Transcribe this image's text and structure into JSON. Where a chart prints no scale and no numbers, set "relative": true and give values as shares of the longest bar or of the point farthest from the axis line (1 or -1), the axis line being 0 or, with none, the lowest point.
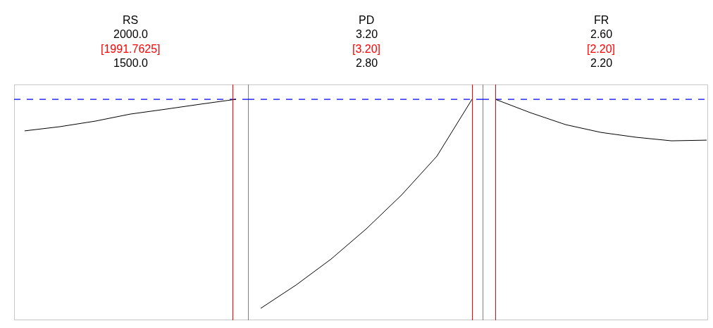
{
  "chart_data": [
    {
      "type": "line",
      "title": "RS",
      "annotations": [
        "2000.0",
        "[1991.7625]",
        "1500.0"
      ],
      "relative": true,
      "categories": [
        null,
        null,
        null,
        null,
        null,
        null,
        null
      ],
      "series": [
        {
          "color": "#000000",
          "values": [
            0.857,
            0.876,
            0.901,
            0.933,
            0.955,
            0.978,
            1.0
          ]
        }
      ],
      "ref_lines": [
        {
          "axis": "y",
          "value": 1,
          "color": "#0000ff",
          "line_style": "dashed"
        }
      ]
    },
    {
      "type": "line",
      "title": "PD",
      "annotations": [
        "3.20",
        "[3.20]",
        "2.80"
      ],
      "relative": true,
      "categories": [
        null,
        null,
        null,
        null,
        null,
        null,
        null
      ],
      "series": [
        {
          "color": "#000000",
          "values": [
            0.054,
            0.159,
            0.277,
            0.414,
            0.567,
            0.742,
            1.0
          ]
        }
      ],
      "ref_lines": [
        {
          "axis": "y",
          "value": 1,
          "color": "#0000ff",
          "line_style": "dashed"
        }
      ]
    },
    {
      "type": "line",
      "title": "FR",
      "annotations": [
        "2.60",
        "[2.20]",
        "2.20"
      ],
      "relative": true,
      "categories": [
        null,
        null,
        null,
        null,
        null,
        null,
        null
      ],
      "series": [
        {
          "color": "#000000",
          "values": [
            1.0,
            0.939,
            0.885,
            0.85,
            0.828,
            0.812,
            0.815
          ]
        }
      ],
      "ref_lines": [
        {
          "axis": "y",
          "value": 1,
          "color": "#0000ff",
          "line_style": "dashed"
        }
      ]
    }
  ]
}
